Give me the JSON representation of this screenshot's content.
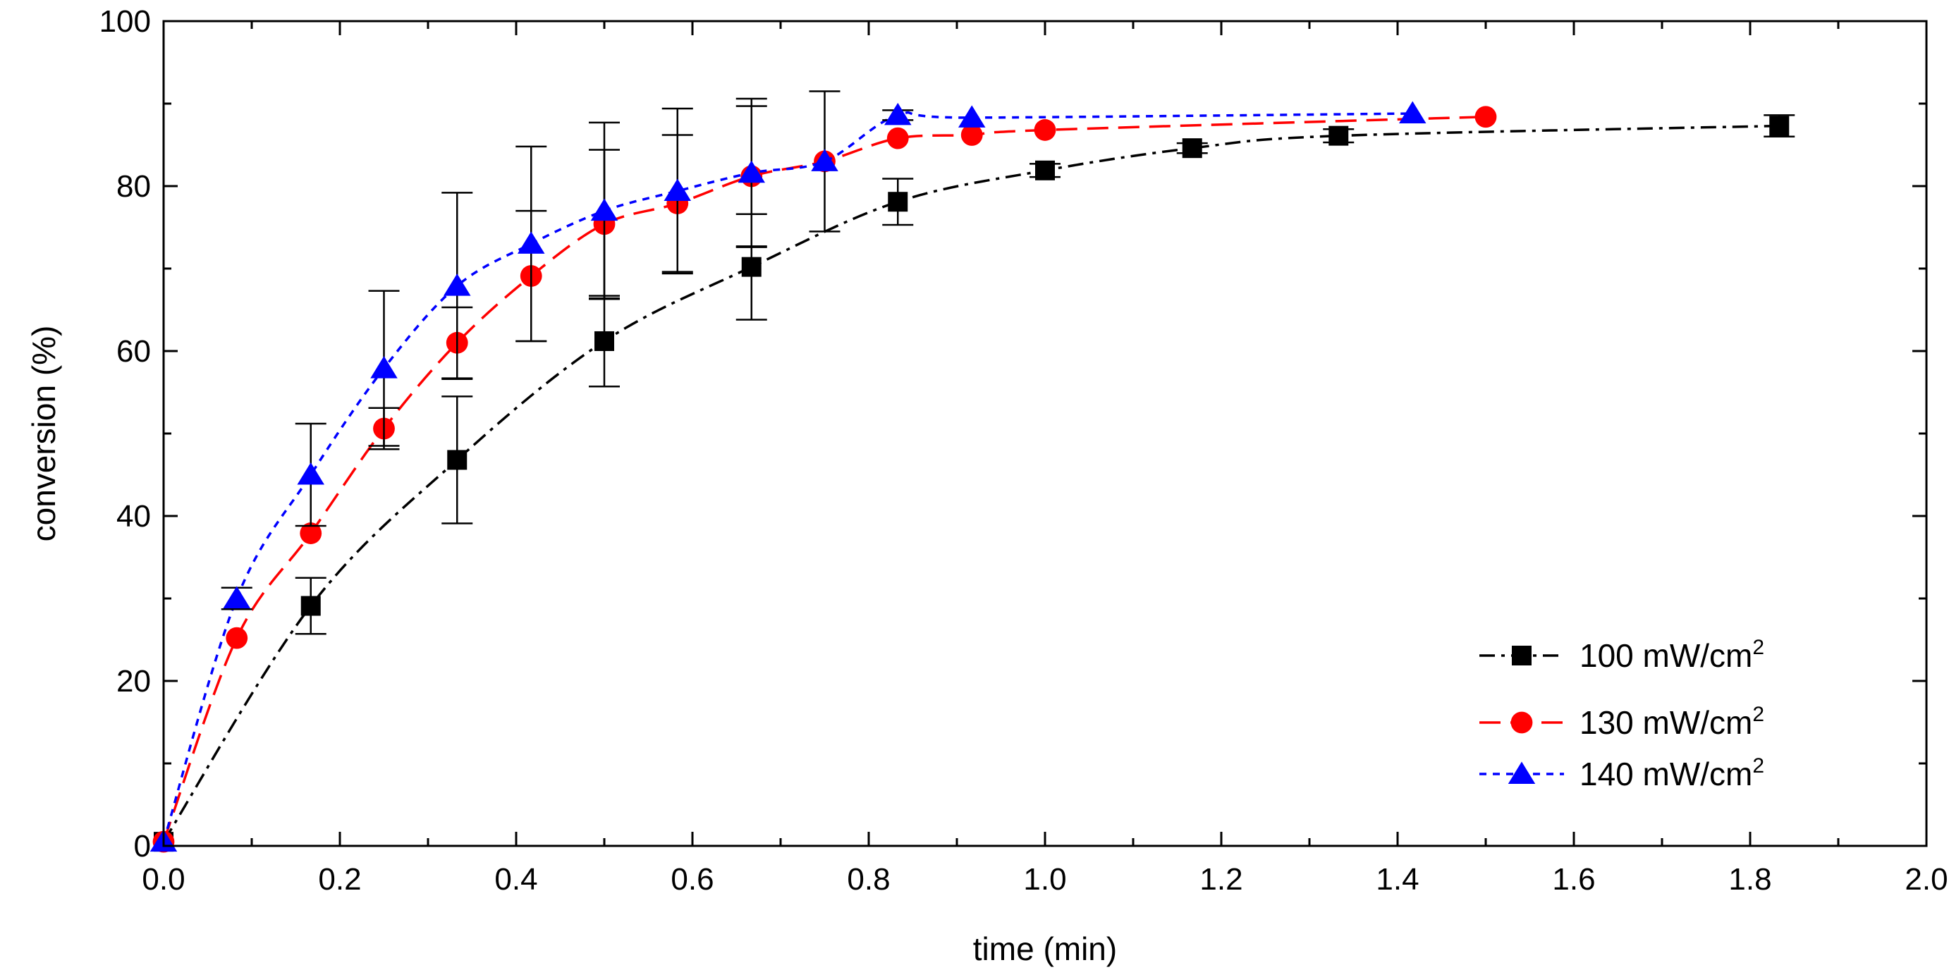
{
  "chart_data": {
    "type": "line",
    "xlabel": "time (min)",
    "ylabel": "conversion (%)",
    "xlim": [
      0,
      2.0
    ],
    "ylim": [
      0,
      100
    ],
    "x_ticks": [
      "0.0",
      "0.2",
      "0.4",
      "0.6",
      "0.8",
      "1.0",
      "1.2",
      "1.4",
      "1.6",
      "1.8",
      "2.0"
    ],
    "y_ticks": [
      "0",
      "20",
      "40",
      "60",
      "80",
      "100"
    ],
    "legend_position": "bottom-right",
    "series": [
      {
        "name": "100 mW/cm",
        "unit_superscript": "2",
        "color": "#000000",
        "marker": "square",
        "dash": "dash-dot",
        "x": [
          0,
          0.167,
          0.333,
          0.5,
          0.667,
          0.833,
          1.0,
          1.167,
          1.333,
          1.833
        ],
        "y": [
          0.5,
          29.1,
          46.8,
          61.2,
          70.2,
          78.1,
          81.9,
          84.6,
          86.1,
          87.3
        ],
        "err": [
          0,
          3.4,
          7.7,
          5.5,
          6.4,
          2.8,
          0.8,
          0.6,
          0.8,
          1.3
        ]
      },
      {
        "name": "130 mW/cm",
        "unit_superscript": "2",
        "color": "#ff0000",
        "marker": "circle",
        "dash": "long-dash",
        "x": [
          0,
          0.083,
          0.167,
          0.25,
          0.333,
          0.417,
          0.5,
          0.583,
          0.667,
          0.75,
          0.833,
          0.917,
          1.0,
          1.5
        ],
        "y": [
          0.5,
          25.2,
          37.9,
          50.6,
          61.0,
          69.1,
          75.4,
          77.9,
          81.2,
          83.0,
          85.8,
          86.2,
          86.8,
          88.4
        ],
        "err": [
          0,
          0,
          0,
          2.5,
          4.3,
          7.9,
          9.0,
          8.3,
          8.5,
          0,
          0,
          0,
          0,
          0
        ]
      },
      {
        "name": "140 mW/cm",
        "unit_superscript": "2",
        "color": "#0000ff",
        "marker": "triangle",
        "dash": "short-dash",
        "x": [
          0,
          0.083,
          0.167,
          0.25,
          0.333,
          0.417,
          0.5,
          0.583,
          0.667,
          0.75,
          0.833,
          0.917,
          1.417
        ],
        "y": [
          0.5,
          30.0,
          45.0,
          57.9,
          67.9,
          73.0,
          77.0,
          79.4,
          81.6,
          83.0,
          88.6,
          88.3,
          88.8
        ],
        "err": [
          0,
          1.3,
          6.2,
          9.4,
          11.3,
          11.8,
          10.7,
          10.0,
          9.0,
          8.5,
          0.6,
          0,
          0
        ]
      }
    ]
  }
}
